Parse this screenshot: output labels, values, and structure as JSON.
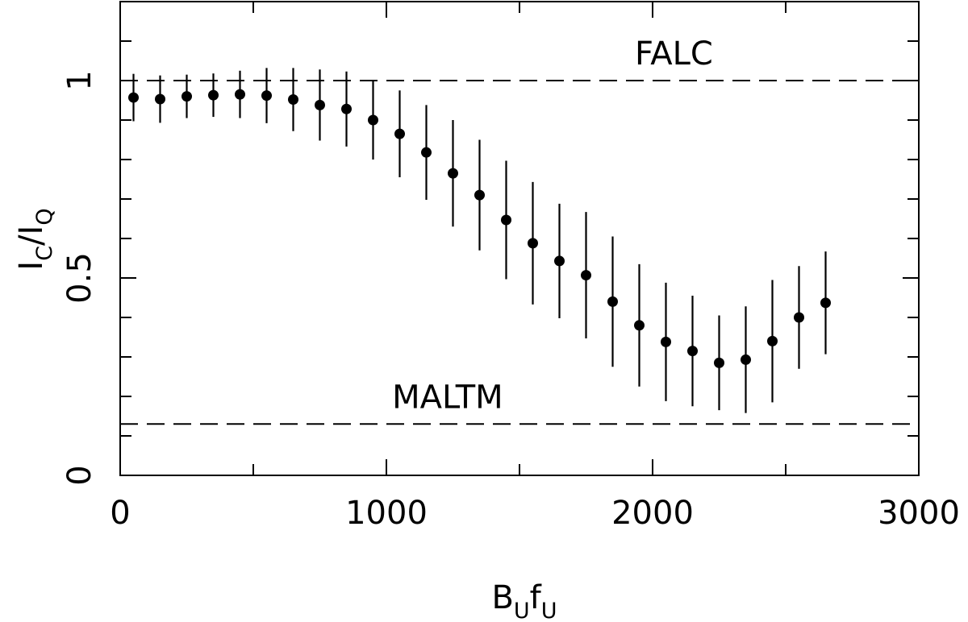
{
  "chart_data": {
    "type": "scatter",
    "title": "",
    "xlabel": {
      "main": "B",
      "sub1": "U",
      "mid": "f",
      "sub2": "U"
    },
    "ylabel": {
      "main1": "I",
      "sub1": "C",
      "slash": "/",
      "main2": "I",
      "sub2": "Q"
    },
    "xlim": [
      0,
      3000
    ],
    "ylim": [
      0,
      1.2
    ],
    "x_ticks": [
      {
        "value": 0,
        "label": "0"
      },
      {
        "value": 1000,
        "label": "1000"
      },
      {
        "value": 2000,
        "label": "2000"
      },
      {
        "value": 3000,
        "label": "3000"
      }
    ],
    "y_ticks": [
      {
        "value": 0,
        "label": "0"
      },
      {
        "value": 0.5,
        "label": "0.5"
      },
      {
        "value": 1,
        "label": "1"
      }
    ],
    "x_minor_step": 500,
    "y_minor_step": 0.1,
    "grid": false,
    "reference_lines": [
      {
        "name": "FALC",
        "label": "FALC",
        "y": 1.0,
        "label_x": 1000
      },
      {
        "name": "MALTM",
        "label": "MALTM",
        "y": 0.13,
        "label_x": 1000
      }
    ],
    "series": [
      {
        "points": [
          {
            "x": 50,
            "y": 0.957,
            "err": 0.06
          },
          {
            "x": 150,
            "y": 0.953,
            "err": 0.06
          },
          {
            "x": 250,
            "y": 0.96,
            "err": 0.055
          },
          {
            "x": 350,
            "y": 0.963,
            "err": 0.055
          },
          {
            "x": 450,
            "y": 0.965,
            "err": 0.06
          },
          {
            "x": 550,
            "y": 0.962,
            "err": 0.07
          },
          {
            "x": 650,
            "y": 0.952,
            "err": 0.08
          },
          {
            "x": 750,
            "y": 0.938,
            "err": 0.09
          },
          {
            "x": 850,
            "y": 0.928,
            "err": 0.095
          },
          {
            "x": 950,
            "y": 0.9,
            "err": 0.1
          },
          {
            "x": 1050,
            "y": 0.865,
            "err": 0.11
          },
          {
            "x": 1150,
            "y": 0.818,
            "err": 0.12
          },
          {
            "x": 1250,
            "y": 0.765,
            "err": 0.135
          },
          {
            "x": 1350,
            "y": 0.71,
            "err": 0.14
          },
          {
            "x": 1450,
            "y": 0.647,
            "err": 0.15
          },
          {
            "x": 1550,
            "y": 0.588,
            "err": 0.155
          },
          {
            "x": 1650,
            "y": 0.543,
            "err": 0.145
          },
          {
            "x": 1750,
            "y": 0.507,
            "err": 0.16
          },
          {
            "x": 1850,
            "y": 0.44,
            "err": 0.165
          },
          {
            "x": 1950,
            "y": 0.38,
            "err": 0.155
          },
          {
            "x": 2050,
            "y": 0.338,
            "err": 0.15
          },
          {
            "x": 2150,
            "y": 0.315,
            "err": 0.14
          },
          {
            "x": 2250,
            "y": 0.285,
            "err": 0.12
          },
          {
            "x": 2350,
            "y": 0.293,
            "err": 0.135
          },
          {
            "x": 2450,
            "y": 0.34,
            "err": 0.155
          },
          {
            "x": 2550,
            "y": 0.4,
            "err": 0.13
          },
          {
            "x": 2650,
            "y": 0.437,
            "err": 0.13
          }
        ]
      }
    ]
  }
}
